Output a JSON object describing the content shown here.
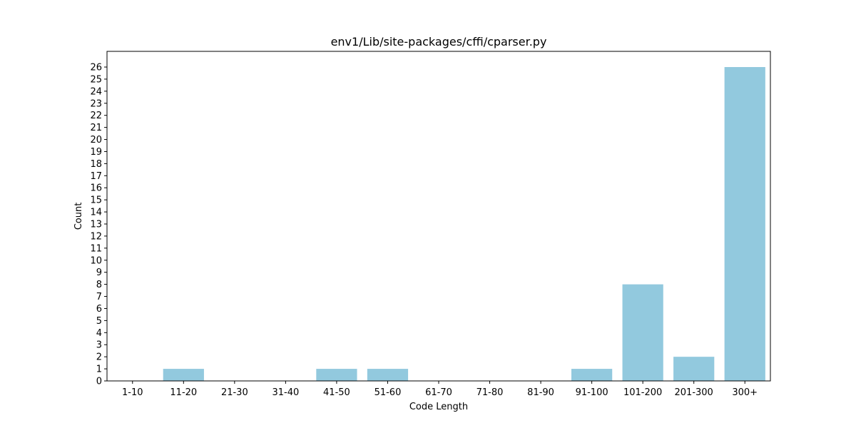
{
  "chart_data": {
    "type": "bar",
    "title": "env1/Lib/site-packages/cffi/cparser.py",
    "xlabel": "Code Length",
    "ylabel": "Count",
    "categories": [
      "1-10",
      "11-20",
      "21-30",
      "31-40",
      "41-50",
      "51-60",
      "61-70",
      "71-80",
      "81-90",
      "91-100",
      "101-200",
      "201-300",
      "300+"
    ],
    "values": [
      0,
      1,
      0,
      0,
      1,
      1,
      0,
      0,
      0,
      1,
      8,
      2,
      26
    ],
    "ylim": [
      0,
      27.3
    ],
    "yticks": [
      0,
      1,
      2,
      3,
      4,
      5,
      6,
      7,
      8,
      9,
      10,
      11,
      12,
      13,
      14,
      15,
      16,
      17,
      18,
      19,
      20,
      21,
      22,
      23,
      24,
      25,
      26
    ],
    "bar_color": "#92c9de",
    "grid": false,
    "legend": "none"
  }
}
